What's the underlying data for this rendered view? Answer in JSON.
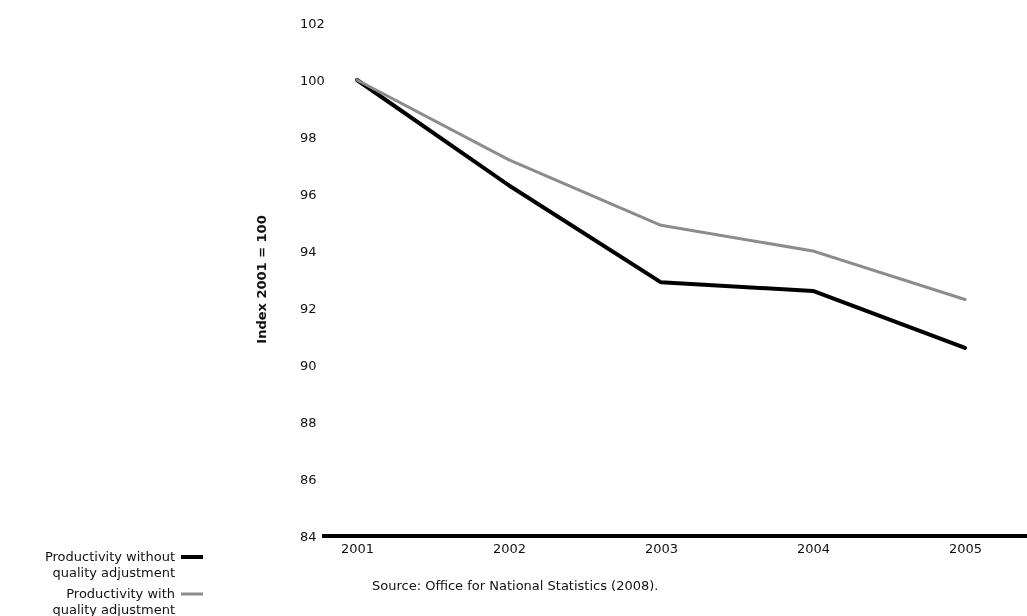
{
  "chart_data": {
    "type": "line",
    "ylabel": "Index 2001 = 100",
    "categories": [
      "2001",
      "2002",
      "2003",
      "2004",
      "2005"
    ],
    "series": [
      {
        "name": "Productivity without quality adjustment",
        "color": "#000000",
        "values": [
          100,
          96.3,
          92.9,
          92.6,
          90.6
        ]
      },
      {
        "name": "Productivity with quality adjustment",
        "color": "#8c8c8c",
        "values": [
          100,
          97.2,
          94.9,
          94.0,
          92.3
        ]
      }
    ],
    "ylim": [
      84,
      102
    ],
    "yticks": [
      84,
      86,
      88,
      90,
      92,
      94,
      96,
      98,
      100,
      102
    ],
    "grid": false,
    "legend": "bottom left",
    "marker": "none",
    "line_style": "solid",
    "annotations": [
      "Source: Office for National Statistics (2008)."
    ]
  }
}
